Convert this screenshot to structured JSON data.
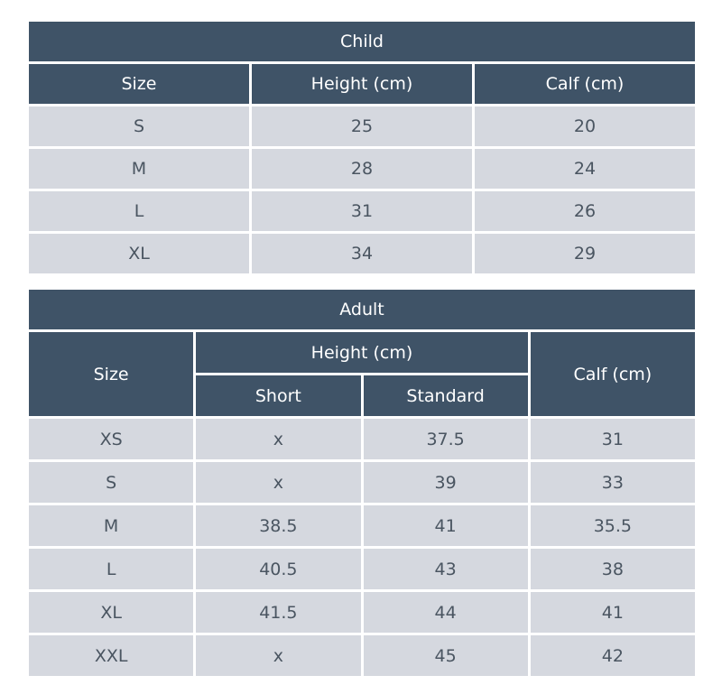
{
  "child": {
    "title": "Child",
    "headers": [
      "Size",
      "Height (cm)",
      "Calf (cm)"
    ],
    "rows": [
      [
        "S",
        25,
        20
      ],
      [
        "M",
        28,
        24
      ],
      [
        "L",
        31,
        26
      ],
      [
        "XL",
        34,
        29
      ]
    ]
  },
  "adult": {
    "title": "Adult",
    "headers": {
      "size": "Size",
      "height": "Height (cm)",
      "short": "Short",
      "standard": "Standard",
      "calf": "Calf (cm)"
    },
    "rows": [
      [
        "XS",
        "x",
        37.5,
        31
      ],
      [
        "S",
        "x",
        39,
        33
      ],
      [
        "M",
        38.5,
        41,
        35.5
      ],
      [
        "L",
        40.5,
        43,
        38
      ],
      [
        "XL",
        41.5,
        44,
        41
      ],
      [
        "XXL",
        "x",
        45,
        42
      ]
    ]
  }
}
